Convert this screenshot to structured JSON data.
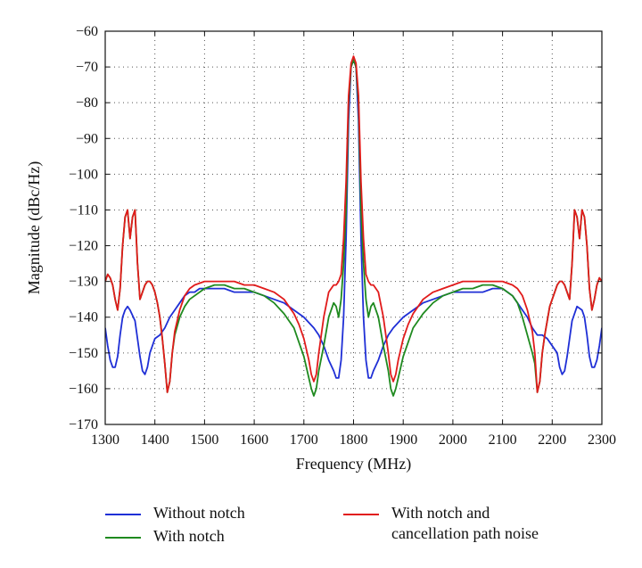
{
  "chart_data": {
    "type": "line",
    "title": "",
    "xlabel": "Frequency (MHz)",
    "ylabel": "Magnitude (dBc/Hz)",
    "xlim": [
      1300,
      2300
    ],
    "ylim": [
      -170,
      -60
    ],
    "xticks": [
      1300,
      1400,
      1500,
      1600,
      1700,
      1800,
      1900,
      2000,
      2100,
      2200,
      2300
    ],
    "yticks": [
      -60,
      -70,
      -80,
      -90,
      -100,
      -110,
      -120,
      -130,
      -140,
      -150,
      -160,
      -170
    ],
    "grid": true,
    "legend_position": "bottom",
    "series": [
      {
        "name": "Without notch",
        "color": "#1f2fd6",
        "x": [
          1300,
          1305,
          1310,
          1315,
          1320,
          1325,
          1330,
          1335,
          1340,
          1345,
          1350,
          1360,
          1365,
          1370,
          1375,
          1380,
          1385,
          1390,
          1395,
          1400,
          1410,
          1420,
          1430,
          1440,
          1450,
          1460,
          1470,
          1480,
          1490,
          1500,
          1520,
          1540,
          1560,
          1580,
          1600,
          1620,
          1640,
          1660,
          1680,
          1700,
          1720,
          1730,
          1740,
          1750,
          1760,
          1765,
          1770,
          1775,
          1780,
          1785,
          1790,
          1795,
          1800,
          1805,
          1810,
          1815,
          1820,
          1825,
          1830,
          1835,
          1840,
          1850,
          1860,
          1870,
          1880,
          1900,
          1920,
          1940,
          1960,
          1980,
          2000,
          2020,
          2040,
          2060,
          2080,
          2100,
          2110,
          2120,
          2130,
          2140,
          2150,
          2160,
          2170,
          2180,
          2190,
          2200,
          2210,
          2215,
          2220,
          2225,
          2230,
          2235,
          2240,
          2250,
          2260,
          2265,
          2270,
          2275,
          2280,
          2285,
          2290,
          2295,
          2300
        ],
        "values": [
          -143,
          -148,
          -152,
          -154,
          -154,
          -151,
          -145,
          -140,
          -138,
          -137,
          -138,
          -141,
          -146,
          -151,
          -155,
          -156,
          -154,
          -150,
          -148,
          -146,
          -145,
          -143,
          -140,
          -138,
          -136,
          -134,
          -133,
          -133,
          -132,
          -132,
          -132,
          -132,
          -133,
          -133,
          -133,
          -134,
          -135,
          -136,
          -138,
          -140,
          -143,
          -145,
          -148,
          -152,
          -155,
          -157,
          -157,
          -152,
          -140,
          -118,
          -85,
          -70,
          -68,
          -70,
          -85,
          -118,
          -140,
          -152,
          -157,
          -157,
          -155,
          -152,
          -148,
          -145,
          -143,
          -140,
          -138,
          -136,
          -135,
          -134,
          -133,
          -133,
          -133,
          -133,
          -132,
          -132,
          -133,
          -134,
          -136,
          -138,
          -140,
          -143,
          -145,
          -145,
          -146,
          -148,
          -150,
          -154,
          -156,
          -155,
          -151,
          -146,
          -141,
          -137,
          -138,
          -140,
          -145,
          -151,
          -154,
          -154,
          -152,
          -148,
          -143
        ]
      },
      {
        "name": "With notch",
        "color": "#1f8a1f",
        "x": [
          1300,
          1305,
          1310,
          1315,
          1320,
          1325,
          1330,
          1335,
          1340,
          1345,
          1350,
          1355,
          1360,
          1365,
          1370,
          1375,
          1380,
          1385,
          1390,
          1395,
          1400,
          1405,
          1410,
          1415,
          1420,
          1425,
          1430,
          1435,
          1440,
          1450,
          1460,
          1470,
          1480,
          1500,
          1520,
          1540,
          1560,
          1580,
          1600,
          1620,
          1640,
          1660,
          1680,
          1690,
          1700,
          1710,
          1715,
          1720,
          1725,
          1730,
          1740,
          1750,
          1760,
          1765,
          1770,
          1775,
          1780,
          1785,
          1790,
          1795,
          1800,
          1805,
          1810,
          1815,
          1820,
          1825,
          1830,
          1835,
          1840,
          1850,
          1860,
          1870,
          1875,
          1880,
          1885,
          1890,
          1900,
          1910,
          1920,
          1940,
          1960,
          1980,
          2000,
          2020,
          2040,
          2060,
          2080,
          2100,
          2120,
          2130,
          2140,
          2150,
          2160,
          2165,
          2170,
          2175,
          2180,
          2185,
          2190,
          2195,
          2200,
          2205,
          2210,
          2215,
          2220,
          2225,
          2230,
          2235,
          2240,
          2245,
          2250,
          2255,
          2260,
          2265,
          2270,
          2275,
          2280,
          2285,
          2290,
          2295,
          2300
        ],
        "values": [
          -130,
          -128,
          -129,
          -131,
          -135,
          -138,
          -132,
          -120,
          -112,
          -110,
          -118,
          -112,
          -110,
          -125,
          -135,
          -133,
          -131,
          -130,
          -130,
          -131,
          -133,
          -136,
          -140,
          -146,
          -153,
          -161,
          -158,
          -150,
          -145,
          -140,
          -137,
          -135,
          -134,
          -132,
          -131,
          -131,
          -132,
          -132,
          -133,
          -134,
          -136,
          -139,
          -143,
          -147,
          -151,
          -157,
          -160,
          -162,
          -160,
          -155,
          -148,
          -140,
          -136,
          -137,
          -140,
          -135,
          -125,
          -110,
          -80,
          -70,
          -68,
          -70,
          -80,
          -110,
          -125,
          -135,
          -140,
          -137,
          -136,
          -140,
          -148,
          -155,
          -160,
          -162,
          -160,
          -157,
          -151,
          -147,
          -143,
          -139,
          -136,
          -134,
          -133,
          -132,
          -132,
          -131,
          -131,
          -132,
          -134,
          -136,
          -140,
          -145,
          -150,
          -153,
          -161,
          -158,
          -150,
          -145,
          -141,
          -137,
          -135,
          -133,
          -131,
          -130,
          -130,
          -131,
          -133,
          -135,
          -125,
          -110,
          -112,
          -118,
          -110,
          -112,
          -120,
          -132,
          -138,
          -135,
          -131,
          -129,
          -130
        ]
      },
      {
        "name": "With notch and cancellation path noise",
        "color": "#e11b1b",
        "x": [
          1300,
          1305,
          1310,
          1315,
          1320,
          1325,
          1330,
          1335,
          1340,
          1345,
          1350,
          1355,
          1360,
          1365,
          1370,
          1375,
          1380,
          1385,
          1390,
          1395,
          1400,
          1405,
          1410,
          1415,
          1420,
          1425,
          1430,
          1435,
          1440,
          1450,
          1460,
          1470,
          1480,
          1500,
          1520,
          1540,
          1560,
          1580,
          1600,
          1620,
          1640,
          1660,
          1680,
          1690,
          1700,
          1710,
          1715,
          1720,
          1725,
          1730,
          1740,
          1750,
          1760,
          1765,
          1770,
          1775,
          1780,
          1785,
          1790,
          1795,
          1800,
          1805,
          1810,
          1815,
          1820,
          1825,
          1830,
          1835,
          1840,
          1850,
          1860,
          1870,
          1875,
          1880,
          1885,
          1890,
          1900,
          1910,
          1920,
          1940,
          1960,
          1980,
          2000,
          2020,
          2040,
          2060,
          2080,
          2100,
          2120,
          2130,
          2140,
          2150,
          2160,
          2165,
          2170,
          2175,
          2180,
          2185,
          2190,
          2195,
          2200,
          2205,
          2210,
          2215,
          2220,
          2225,
          2230,
          2235,
          2240,
          2245,
          2250,
          2255,
          2260,
          2265,
          2270,
          2275,
          2280,
          2285,
          2290,
          2295,
          2300
        ],
        "values": [
          -130,
          -128,
          -129,
          -131,
          -135,
          -138,
          -132,
          -120,
          -112,
          -110,
          -118,
          -112,
          -110,
          -125,
          -135,
          -133,
          -131,
          -130,
          -130,
          -131,
          -133,
          -136,
          -140,
          -146,
          -153,
          -161,
          -158,
          -150,
          -144,
          -138,
          -134,
          -132,
          -131,
          -130,
          -130,
          -130,
          -130,
          -131,
          -131,
          -132,
          -133,
          -135,
          -139,
          -142,
          -146,
          -152,
          -156,
          -158,
          -156,
          -150,
          -140,
          -133,
          -131,
          -131,
          -130,
          -128,
          -118,
          -102,
          -78,
          -69,
          -67,
          -69,
          -78,
          -102,
          -118,
          -128,
          -130,
          -131,
          -131,
          -133,
          -140,
          -150,
          -156,
          -158,
          -156,
          -152,
          -146,
          -142,
          -139,
          -135,
          -133,
          -132,
          -131,
          -130,
          -130,
          -130,
          -130,
          -130,
          -131,
          -132,
          -134,
          -138,
          -144,
          -150,
          -161,
          -158,
          -150,
          -145,
          -141,
          -137,
          -135,
          -133,
          -131,
          -130,
          -130,
          -131,
          -133,
          -135,
          -125,
          -110,
          -112,
          -118,
          -110,
          -112,
          -120,
          -132,
          -138,
          -135,
          -131,
          -129,
          -130
        ]
      }
    ]
  },
  "legend": {
    "items": [
      {
        "label_lines": [
          "Without notch"
        ],
        "color": "#1f2fd6"
      },
      {
        "label_lines": [
          "With notch"
        ],
        "color": "#1f8a1f"
      },
      {
        "label_lines": [
          "With notch and",
          "cancellation path noise"
        ],
        "color": "#e11b1b"
      }
    ]
  }
}
